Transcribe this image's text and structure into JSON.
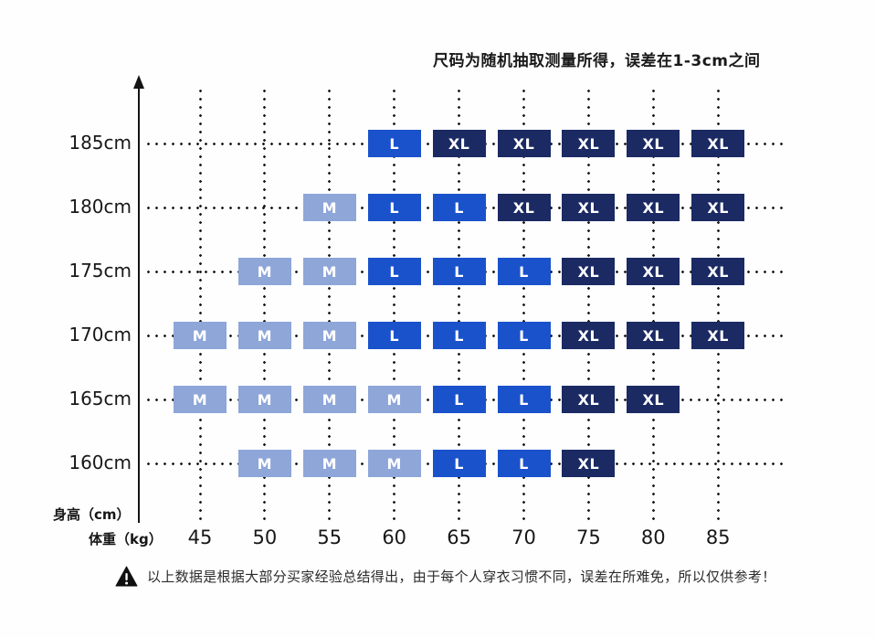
{
  "title": "尺码为随机抽取测量所得，误差在1-3cm之间",
  "footer": {
    "note": "以上数据是根据大部分买家经验总结得出，由于每个人穿衣习惯不同，误差在所难免，所以仅供参考！"
  },
  "chart_data": {
    "type": "heatmap",
    "title": "尺码为随机抽取测量所得，误差在1-3cm之间",
    "ylabel": "身高（cm）",
    "xlabel": "体重（kg）",
    "row_labels": [
      "185cm",
      "180cm",
      "175cm",
      "170cm",
      "165cm",
      "160cm"
    ],
    "col_labels": [
      "45",
      "50",
      "55",
      "60",
      "65",
      "70",
      "75",
      "80",
      "85"
    ],
    "matrix": [
      [
        null,
        null,
        null,
        "L",
        "XL",
        "XL",
        "XL",
        "XL",
        "XL"
      ],
      [
        null,
        null,
        "M",
        "L",
        "L",
        "XL",
        "XL",
        "XL",
        "XL"
      ],
      [
        null,
        "M",
        "M",
        "L",
        "L",
        "L",
        "XL",
        "XL",
        "XL"
      ],
      [
        "M",
        "M",
        "M",
        "L",
        "L",
        "L",
        "XL",
        "XL",
        "XL"
      ],
      [
        "M",
        "M",
        "M",
        "M",
        "L",
        "L",
        "XL",
        "XL",
        null
      ],
      [
        null,
        "M",
        "M",
        "M",
        "L",
        "L",
        "XL",
        null,
        null
      ]
    ],
    "size_colors": {
      "M": "#8ea6d8",
      "L": "#1a52cc",
      "XL": "#1b2a63"
    },
    "grid": "dotted",
    "legend_position": "none"
  }
}
